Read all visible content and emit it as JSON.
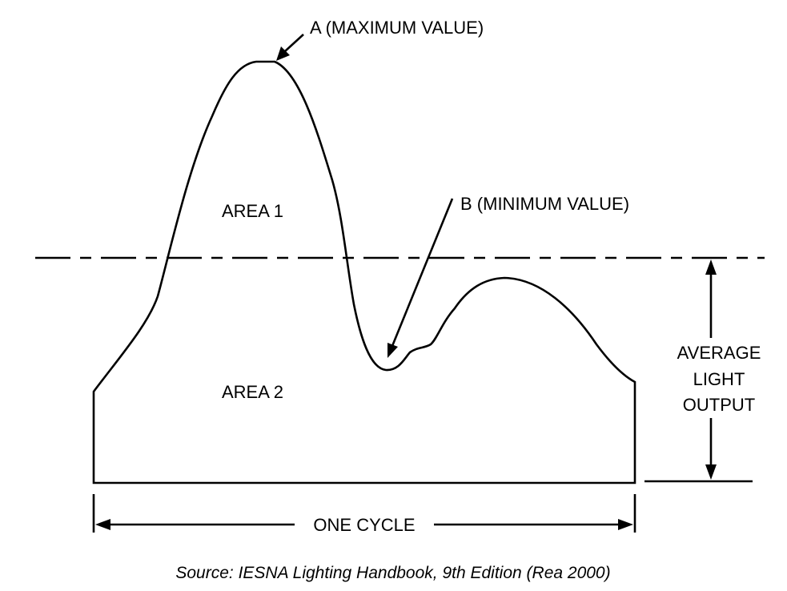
{
  "labels": {
    "max": "A (MAXIMUM VALUE)",
    "min": "B (MINIMUM VALUE)",
    "area1": "AREA 1",
    "area2": "AREA 2",
    "avg_line1": "AVERAGE",
    "avg_line2": "LIGHT",
    "avg_line3": "OUTPUT",
    "cycle": "ONE CYCLE"
  },
  "source": "Source: IESNA Lighting Handbook, 9th Edition (Rea 2000)",
  "colors": {
    "stroke": "#000000",
    "background": "#ffffff"
  }
}
